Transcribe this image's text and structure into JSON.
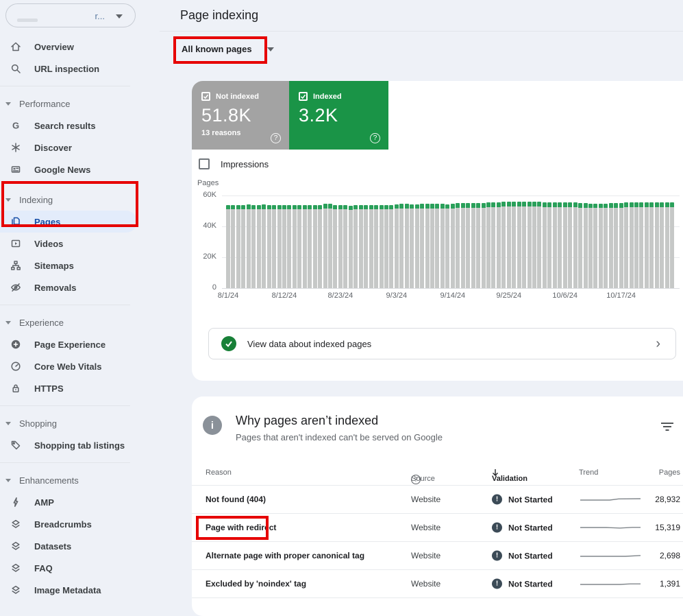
{
  "app": {
    "title": "Page indexing"
  },
  "property_selector": {
    "truncated_label": "r...",
    "redacted": true
  },
  "sidebar": {
    "items": [
      {
        "type": "item",
        "label": "Overview",
        "icon": "home"
      },
      {
        "type": "item",
        "label": "URL inspection",
        "icon": "search"
      },
      {
        "type": "divider"
      },
      {
        "type": "header",
        "label": "Performance"
      },
      {
        "type": "item",
        "label": "Search results",
        "icon": "google-g"
      },
      {
        "type": "item",
        "label": "Discover",
        "icon": "asterisk"
      },
      {
        "type": "item",
        "label": "Google News",
        "icon": "news"
      },
      {
        "type": "header",
        "label": "Indexing",
        "gap": "lg"
      },
      {
        "type": "item",
        "label": "Pages",
        "icon": "pages",
        "selected": true
      },
      {
        "type": "item",
        "label": "Videos",
        "icon": "video"
      },
      {
        "type": "item",
        "label": "Sitemaps",
        "icon": "sitemap"
      },
      {
        "type": "item",
        "label": "Removals",
        "icon": "eye-off"
      },
      {
        "type": "divider"
      },
      {
        "type": "header",
        "label": "Experience",
        "gap": "sm"
      },
      {
        "type": "item",
        "label": "Page Experience",
        "icon": "page-experience"
      },
      {
        "type": "item",
        "label": "Core Web Vitals",
        "icon": "speedometer"
      },
      {
        "type": "item",
        "label": "HTTPS",
        "icon": "lock"
      },
      {
        "type": "divider"
      },
      {
        "type": "header",
        "label": "Shopping"
      },
      {
        "type": "item",
        "label": "Shopping tab listings",
        "icon": "tag"
      },
      {
        "type": "divider"
      },
      {
        "type": "header",
        "label": "Enhancements"
      },
      {
        "type": "item",
        "label": "AMP",
        "icon": "bolt"
      },
      {
        "type": "item",
        "label": "Breadcrumbs",
        "icon": "layers"
      },
      {
        "type": "item",
        "label": "Datasets",
        "icon": "layers"
      },
      {
        "type": "item",
        "label": "FAQ",
        "icon": "layers"
      },
      {
        "type": "item",
        "label": "Image Metadata",
        "icon": "layers"
      }
    ]
  },
  "filter_bar": {
    "scope_dropdown": "All known pages"
  },
  "summary_tiles": [
    {
      "label": "Not indexed",
      "value": "51.8K",
      "sub": "13 reasons",
      "color": "#a3a3a3",
      "checked": true
    },
    {
      "label": "Indexed",
      "value": "3.2K",
      "sub": "",
      "color": "#1a9447",
      "checked": true
    }
  ],
  "impressions_toggle": {
    "label": "Impressions",
    "checked": false
  },
  "chart_data": {
    "type": "bar",
    "stacked": true,
    "ylabel": "Pages",
    "y_ticks": [
      "60K",
      "40K",
      "20K",
      "0"
    ],
    "ylim": [
      0,
      60000
    ],
    "unit": "thousands of pages per day",
    "x_tick_labels": [
      "8/1/24",
      "8/12/24",
      "8/23/24",
      "9/3/24",
      "9/14/24",
      "9/25/24",
      "10/6/24",
      "10/17/24"
    ],
    "x_tick_day_indices": [
      0,
      11,
      22,
      33,
      44,
      55,
      66,
      77
    ],
    "series": [
      {
        "name": "Not indexed",
        "color": "#c6c8c7",
        "values": [
          50.9,
          51.0,
          51.1,
          51.2,
          51.2,
          51.1,
          51.2,
          51.3,
          51.2,
          51.2,
          51.3,
          51.2,
          51.2,
          51.3,
          51.3,
          51.2,
          51.1,
          51.2,
          51.3,
          51.4,
          51.4,
          51.3,
          51.0,
          50.9,
          50.8,
          50.9,
          51.0,
          51.0,
          51.1,
          51.1,
          51.2,
          51.2,
          51.3,
          51.4,
          51.4,
          51.5,
          51.5,
          51.4,
          51.5,
          51.6,
          51.6,
          51.7,
          51.7,
          51.6,
          51.7,
          51.8,
          51.8,
          51.9,
          52.0,
          52.1,
          52.2,
          52.3,
          52.5,
          52.6,
          52.7,
          52.8,
          52.8,
          52.7,
          52.8,
          52.8,
          52.7,
          52.7,
          52.6,
          52.6,
          52.5,
          52.4,
          52.4,
          52.3,
          52.3,
          52.2,
          52.2,
          52.1,
          52.0,
          52.0,
          52.1,
          52.1,
          52.2,
          52.2,
          52.3,
          52.4,
          52.4,
          52.4,
          52.5,
          52.5,
          52.5,
          52.6,
          52.6,
          52.6
        ]
      },
      {
        "name": "Indexed",
        "color": "#2aa05a",
        "values": [
          2.6,
          2.7,
          2.8,
          2.8,
          2.9,
          2.8,
          2.8,
          2.9,
          2.8,
          2.8,
          2.8,
          2.8,
          2.7,
          2.8,
          2.8,
          2.7,
          2.7,
          2.8,
          2.8,
          2.9,
          2.9,
          2.8,
          2.7,
          2.6,
          2.6,
          2.6,
          2.7,
          2.6,
          2.7,
          2.7,
          2.7,
          2.7,
          2.8,
          2.8,
          2.9,
          2.9,
          2.8,
          2.8,
          2.9,
          2.9,
          2.9,
          2.9,
          2.9,
          2.8,
          2.9,
          2.9,
          2.9,
          3.0,
          3.0,
          3.1,
          3.1,
          3.1,
          3.2,
          3.2,
          3.2,
          3.2,
          3.2,
          3.1,
          3.2,
          3.2,
          3.2,
          3.2,
          3.1,
          3.1,
          3.1,
          3.0,
          3.0,
          3.0,
          3.0,
          2.9,
          2.9,
          2.8,
          2.8,
          2.8,
          2.8,
          2.9,
          2.9,
          2.9,
          3.0,
          3.0,
          3.0,
          3.0,
          3.0,
          3.1,
          3.1,
          3.1,
          3.2,
          3.2
        ]
      }
    ]
  },
  "view_data_row": {
    "label": "View data about indexed pages"
  },
  "not_indexed_panel": {
    "title": "Why pages aren’t indexed",
    "subtitle": "Pages that aren't indexed can't be served on Google",
    "columns": [
      "Reason",
      "Source",
      "Validation",
      "Trend",
      "Pages"
    ],
    "sort_column": "Validation",
    "rows": [
      {
        "reason": "Not found (404)",
        "source": "Website",
        "validation": "Not Started",
        "pages": "28,932",
        "trend": [
          [
            2,
            9
          ],
          [
            45,
            9
          ],
          [
            58,
            7.3
          ],
          [
            90,
            7.0
          ]
        ]
      },
      {
        "reason": "Page with redirect",
        "source": "Website",
        "validation": "Not Started",
        "pages": "15,319",
        "trend": [
          [
            2,
            8
          ],
          [
            40,
            8
          ],
          [
            60,
            8.8
          ],
          [
            78,
            7.8
          ],
          [
            90,
            7.8
          ]
        ]
      },
      {
        "reason": "Alternate page with proper canonical tag",
        "source": "Website",
        "validation": "Not Started",
        "pages": "2,698",
        "trend": [
          [
            2,
            9
          ],
          [
            68,
            9
          ],
          [
            90,
            7.8
          ]
        ]
      },
      {
        "reason": "Excluded by 'noindex' tag",
        "source": "Website",
        "validation": "Not Started",
        "pages": "1,391",
        "trend": [
          [
            2,
            9
          ],
          [
            60,
            9
          ],
          [
            75,
            8.2
          ],
          [
            90,
            8.2
          ]
        ]
      }
    ]
  },
  "annotations": {
    "color": "#e60000",
    "boxes": [
      {
        "target": "scope-dropdown"
      },
      {
        "target": "sidebar-indexing-and-pages"
      },
      {
        "target": "reason-page-with-redirect"
      }
    ]
  }
}
